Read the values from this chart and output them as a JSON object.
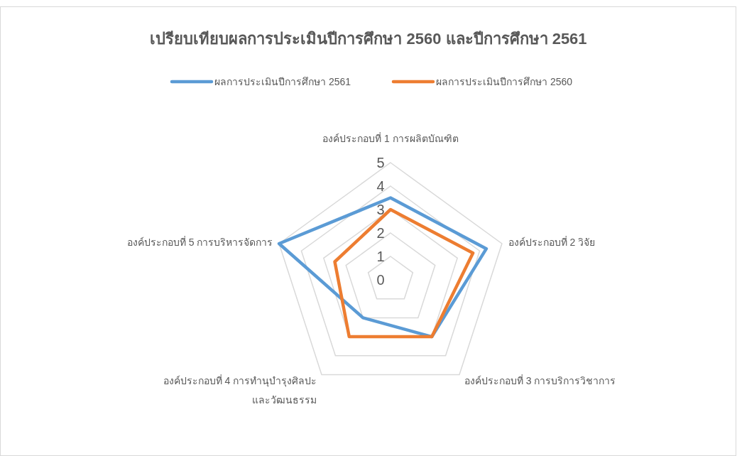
{
  "chart_data": {
    "type": "radar",
    "title": "เปรียบเทียบผลการประเมินปีการศึกษา 2560 และปีการศึกษา 2561",
    "categories": [
      "องค์ประกอบที่ 1 การผลิตบัณฑิต",
      "องค์ประกอบที่ 2 วิจัย",
      "องค์ประกอบที่ 3 การบริการวิชาการ",
      "องค์ประกอบที่ 4 การทำนุบำรุงศิลปะ\nและวัฒนธรรม",
      "องค์ประกอบที่ 5 การบริหารจัดการ"
    ],
    "series": [
      {
        "name": "ผลการประเมินปีการศึกษา 2561",
        "color": "#5b9bd5",
        "values": [
          3.5,
          4.3,
          3.0,
          2.0,
          5.0
        ]
      },
      {
        "name": "ผลการประเมินปีการศึกษา 2560",
        "color": "#ed7d31",
        "values": [
          3.0,
          3.7,
          3.0,
          3.0,
          2.5
        ]
      }
    ],
    "ylim": [
      0,
      5
    ],
    "yticks": [
      0,
      1,
      2,
      3,
      4,
      5
    ],
    "grid": true,
    "legend": "top",
    "marker": "none",
    "line_style": "solid"
  }
}
